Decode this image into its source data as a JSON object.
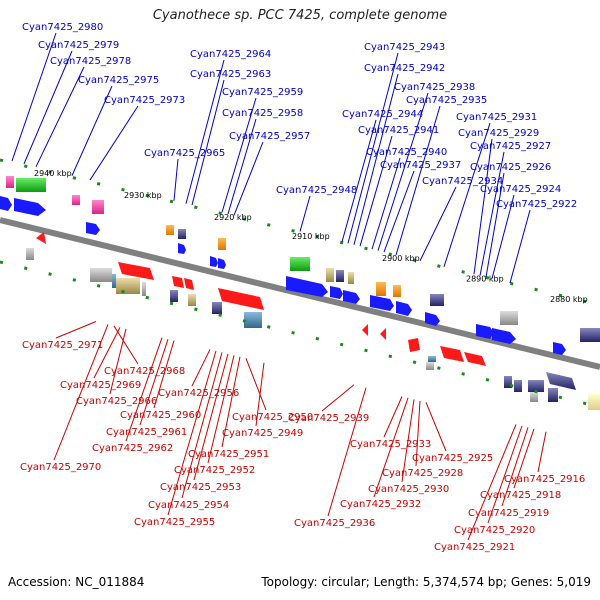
{
  "title": "Cyanothece sp. PCC 7425, complete genome",
  "accession": "Accession: NC_011884",
  "summary": "Topology: circular; Length: 5,374,574 bp; Genes: 5,019",
  "colors": {
    "forward_label": "#0000cc",
    "reverse_label": "#cc0000",
    "forward_arrow": "#1a1aff",
    "reverse_arrow": "#ff1a1a",
    "backbone": "#808080",
    "tick": "#1a8a1a"
  },
  "ticks": [
    {
      "label": "2940 kbp",
      "pos": 0.06
    },
    {
      "label": "2930 kbp",
      "pos": 0.21
    },
    {
      "label": "2920 kbp",
      "pos": 0.36
    },
    {
      "label": "2910 kbp",
      "pos": 0.49
    },
    {
      "label": "2900 kbp",
      "pos": 0.64
    },
    {
      "label": "2890 kbp",
      "pos": 0.78
    },
    {
      "label": "2880 kbp",
      "pos": 0.92
    }
  ],
  "forward_genes": [
    {
      "label": "Cyan7425_2980",
      "pos": 0.02
    },
    {
      "label": "Cyan7425_2979",
      "pos": 0.04
    },
    {
      "label": "Cyan7425_2978",
      "pos": 0.06
    },
    {
      "label": "Cyan7425_2975",
      "pos": 0.12
    },
    {
      "label": "Cyan7425_2973",
      "pos": 0.15
    },
    {
      "label": "Cyan7425_2965",
      "pos": 0.29
    },
    {
      "label": "Cyan7425_2964",
      "pos": 0.31
    },
    {
      "label": "Cyan7425_2963",
      "pos": 0.32
    },
    {
      "label": "Cyan7425_2959",
      "pos": 0.37
    },
    {
      "label": "Cyan7425_2958",
      "pos": 0.38
    },
    {
      "label": "Cyan7425_2957",
      "pos": 0.39
    },
    {
      "label": "Cyan7425_2948",
      "pos": 0.5
    },
    {
      "label": "Cyan7425_2944",
      "pos": 0.57
    },
    {
      "label": "Cyan7425_2943",
      "pos": 0.58
    },
    {
      "label": "Cyan7425_2942",
      "pos": 0.59
    },
    {
      "label": "Cyan7425_2941",
      "pos": 0.6
    },
    {
      "label": "Cyan7425_2940",
      "pos": 0.62
    },
    {
      "label": "Cyan7425_2938",
      "pos": 0.63
    },
    {
      "label": "Cyan7425_2937",
      "pos": 0.64
    },
    {
      "label": "Cyan7425_2935",
      "pos": 0.66
    },
    {
      "label": "Cyan7425_2934",
      "pos": 0.7
    },
    {
      "label": "Cyan7425_2931",
      "pos": 0.74
    },
    {
      "label": "Cyan7425_2929",
      "pos": 0.79
    },
    {
      "label": "Cyan7425_2927",
      "pos": 0.8
    },
    {
      "label": "Cyan7425_2926",
      "pos": 0.81
    },
    {
      "label": "Cyan7425_2924",
      "pos": 0.82
    },
    {
      "label": "Cyan7425_2922",
      "pos": 0.85
    }
  ],
  "reverse_genes": [
    {
      "label": "Cyan7425_2971",
      "pos": 0.16
    },
    {
      "label": "Cyan7425_2970",
      "pos": 0.18
    },
    {
      "label": "Cyan7425_2968",
      "pos": 0.19
    },
    {
      "label": "Cyan7425_2969",
      "pos": 0.2
    },
    {
      "label": "Cyan7425_2966",
      "pos": 0.21
    },
    {
      "label": "Cyan7425_2962",
      "pos": 0.27
    },
    {
      "label": "Cyan7425_2961",
      "pos": 0.28
    },
    {
      "label": "Cyan7425_2960",
      "pos": 0.29
    },
    {
      "label": "Cyan7425_2956",
      "pos": 0.35
    },
    {
      "label": "Cyan7425_2955",
      "pos": 0.36
    },
    {
      "label": "Cyan7425_2954",
      "pos": 0.37
    },
    {
      "label": "Cyan7425_2953",
      "pos": 0.38
    },
    {
      "label": "Cyan7425_2952",
      "pos": 0.39
    },
    {
      "label": "Cyan7425_2951",
      "pos": 0.4
    },
    {
      "label": "Cyan7425_2950",
      "pos": 0.41
    },
    {
      "label": "Cyan7425_2949",
      "pos": 0.44
    },
    {
      "label": "Cyan7425_2939",
      "pos": 0.59
    },
    {
      "label": "Cyan7425_2936",
      "pos": 0.61
    },
    {
      "label": "Cyan7425_2933",
      "pos": 0.67
    },
    {
      "label": "Cyan7425_2932",
      "pos": 0.68
    },
    {
      "label": "Cyan7425_2930",
      "pos": 0.69
    },
    {
      "label": "Cyan7425_2928",
      "pos": 0.7
    },
    {
      "label": "Cyan7425_2925",
      "pos": 0.71
    },
    {
      "label": "Cyan7425_2921",
      "pos": 0.86
    },
    {
      "label": "Cyan7425_2920",
      "pos": 0.87
    },
    {
      "label": "Cyan7425_2919",
      "pos": 0.88
    },
    {
      "label": "Cyan7425_2918",
      "pos": 0.89
    },
    {
      "label": "Cyan7425_2916",
      "pos": 0.91
    }
  ]
}
